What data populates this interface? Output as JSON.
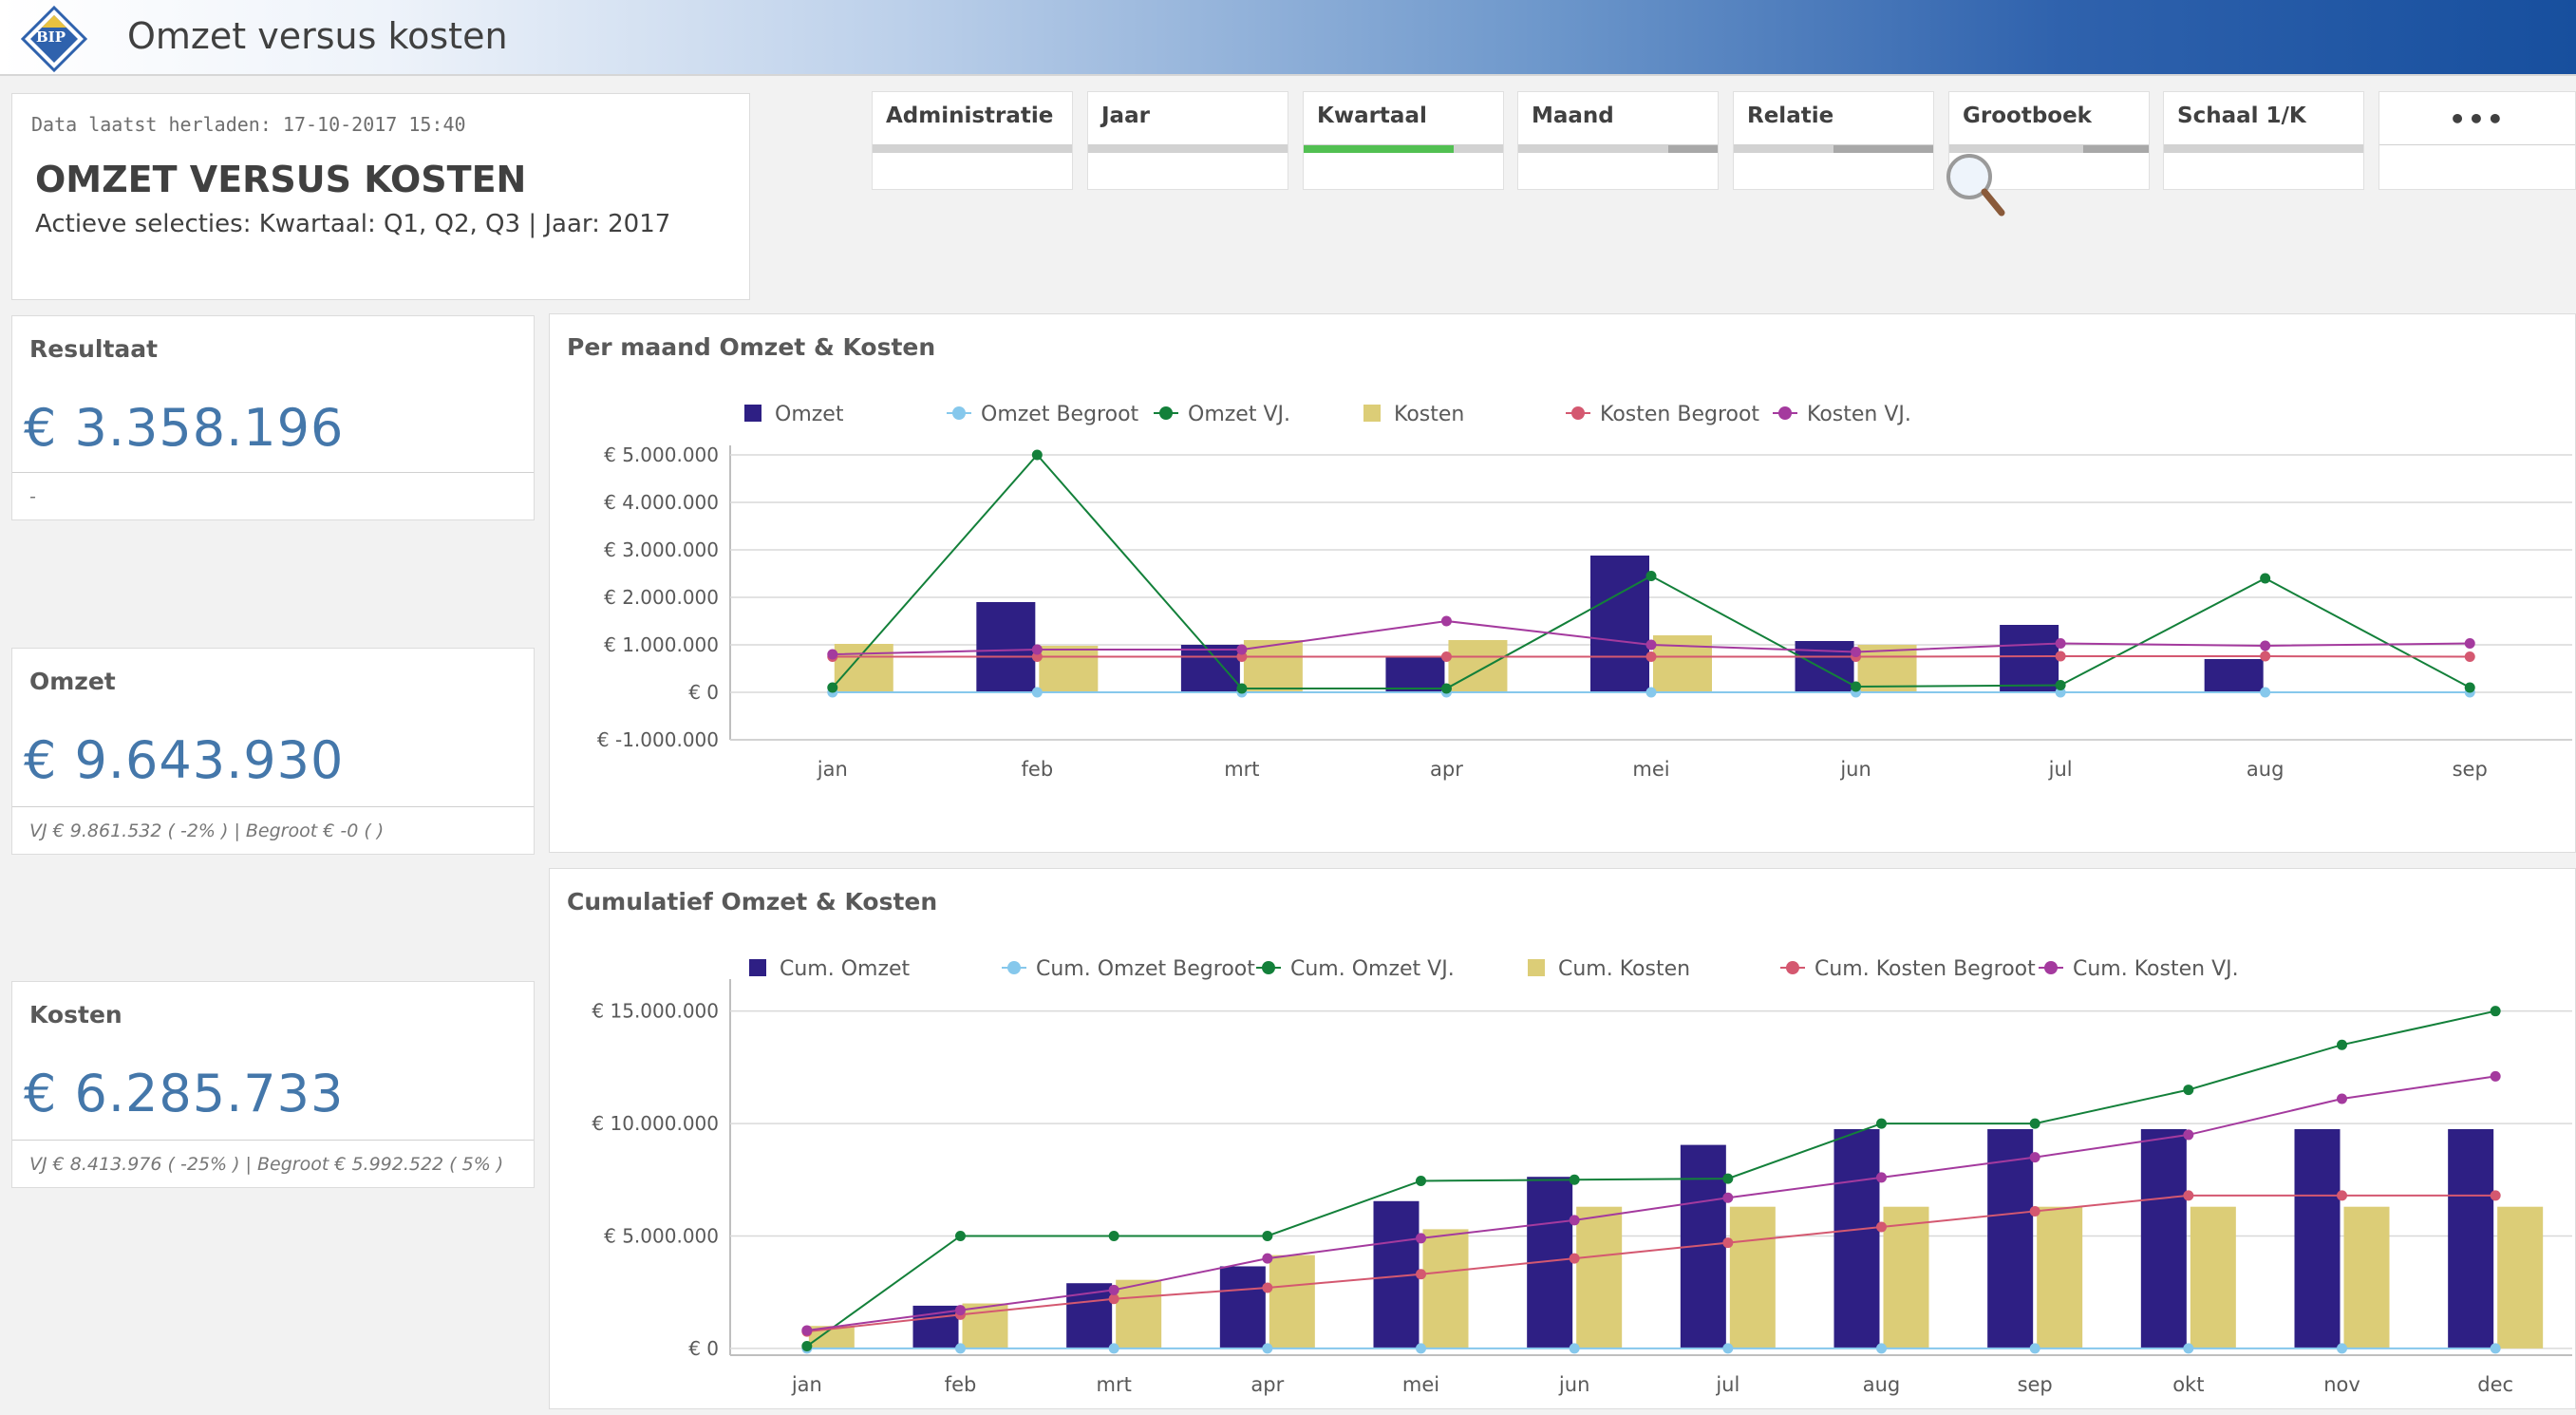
{
  "header": {
    "title": "Omzet versus kosten",
    "logo_text": "BIP"
  },
  "info": {
    "reload": "Data laatst herladen: 17-10-2017 15:40",
    "title": "OMZET VERSUS KOSTEN",
    "selections": "Actieve selecties: Kwartaal: Q1, Q2, Q3 | Jaar: 2017"
  },
  "filters": [
    {
      "label": "Administratie",
      "fill": 0,
      "color": "#a8a8a8"
    },
    {
      "label": "Jaar",
      "fill": 0,
      "color": "#a8a8a8"
    },
    {
      "label": "Kwartaal",
      "fill": 0.75,
      "color": "#52c052"
    },
    {
      "label": "Maand",
      "fill": 0.25,
      "color": "#a8a8a8"
    },
    {
      "label": "Relatie",
      "fill": 0.5,
      "color": "#a8a8a8"
    },
    {
      "label": "Grootboek",
      "fill": 0.33,
      "color": "#a8a8a8"
    },
    {
      "label": "Schaal 1/K",
      "fill": 0,
      "color": "#a8a8a8"
    },
    {
      "label": "•••",
      "fill": 0,
      "color": "#a8a8a8"
    }
  ],
  "kpis": {
    "resultaat": {
      "label": "Resultaat",
      "value": "€ 3.358.196",
      "footer": "-"
    },
    "omzet": {
      "label": "Omzet",
      "value": "€ 9.643.930",
      "footer": "VJ € 9.861.532 ( -2% ) | Begroot € -0 ( )"
    },
    "kosten": {
      "label": "Kosten",
      "value": "€ 6.285.733",
      "footer": "VJ € 8.413.976 ( -25% ) | Begroot € 5.992.522 ( 5% )"
    }
  },
  "colors": {
    "omzet": "#2e1f84",
    "omzet_begroot": "#86c8ec",
    "omzet_vj": "#13803a",
    "kosten": "#dccd77",
    "kosten_begroot": "#d45870",
    "kosten_vj": "#a43a9e"
  },
  "chart_data": [
    {
      "type": "bar",
      "title": "Per maand Omzet & Kosten",
      "categories": [
        "jan",
        "feb",
        "mrt",
        "apr",
        "mei",
        "jun",
        "jul",
        "aug",
        "sep"
      ],
      "ylim": [
        -1000000,
        5000000
      ],
      "yticks": [
        {
          "value": 5000000,
          "label": "€ 5.000.000"
        },
        {
          "value": 4000000,
          "label": "€ 4.000.000"
        },
        {
          "value": 3000000,
          "label": "€ 3.000.000"
        },
        {
          "value": 2000000,
          "label": "€ 2.000.000"
        },
        {
          "value": 1000000,
          "label": "€ 1.000.000"
        },
        {
          "value": 0,
          "label": "€ 0"
        },
        {
          "value": -1000000,
          "label": "€ -1.000.000"
        }
      ],
      "legend_position": "top",
      "series": [
        {
          "name": "Omzet",
          "kind": "bar",
          "color_key": "omzet",
          "values": [
            0,
            1900000,
            1000000,
            750000,
            2880000,
            1080000,
            1420000,
            700000,
            0
          ]
        },
        {
          "name": "Omzet Begroot",
          "kind": "line",
          "color_key": "omzet_begroot",
          "values": [
            0,
            0,
            0,
            0,
            0,
            0,
            0,
            0,
            0
          ]
        },
        {
          "name": "Omzet VJ.",
          "kind": "line",
          "color_key": "omzet_vj",
          "values": [
            100000,
            5000000,
            80000,
            80000,
            2450000,
            120000,
            150000,
            2400000,
            100000
          ]
        },
        {
          "name": "Kosten",
          "kind": "bar",
          "color_key": "kosten",
          "values": [
            1020000,
            980000,
            1100000,
            1100000,
            1200000,
            1000000,
            0,
            0,
            0
          ]
        },
        {
          "name": "Kosten Begroot",
          "kind": "line",
          "color_key": "kosten_begroot",
          "values": [
            750000,
            750000,
            750000,
            750000,
            750000,
            750000,
            760000,
            760000,
            750000
          ]
        },
        {
          "name": "Kosten VJ.",
          "kind": "line",
          "color_key": "kosten_vj",
          "values": [
            800000,
            900000,
            900000,
            1500000,
            1000000,
            850000,
            1030000,
            980000,
            1030000
          ]
        }
      ]
    },
    {
      "type": "bar",
      "title": "Cumulatief Omzet & Kosten",
      "categories": [
        "jan",
        "feb",
        "mrt",
        "apr",
        "mei",
        "jun",
        "jul",
        "aug",
        "sep",
        "okt",
        "nov",
        "dec"
      ],
      "ylim": [
        -300000,
        16000000
      ],
      "yticks": [
        {
          "value": 15000000,
          "label": "€ 15.000.000"
        },
        {
          "value": 10000000,
          "label": "€ 10.000.000"
        },
        {
          "value": 5000000,
          "label": "€ 5.000.000"
        },
        {
          "value": 0,
          "label": "€ 0"
        }
      ],
      "legend_position": "top",
      "series": [
        {
          "name": "Cum. Omzet",
          "kind": "bar",
          "color_key": "omzet",
          "values": [
            0,
            1900000,
            2900000,
            3650000,
            6550000,
            7630000,
            9050000,
            9750000,
            9750000,
            9750000,
            9750000,
            9750000
          ]
        },
        {
          "name": "Cum. Omzet Begroot",
          "kind": "line",
          "color_key": "omzet_begroot",
          "values": [
            0,
            0,
            0,
            0,
            0,
            0,
            0,
            0,
            0,
            0,
            0,
            0
          ]
        },
        {
          "name": "Cum. Omzet VJ.",
          "kind": "line",
          "color_key": "omzet_vj",
          "values": [
            100000,
            5000000,
            5000000,
            5000000,
            7450000,
            7500000,
            7550000,
            10000000,
            10000000,
            11500000,
            13500000,
            15000000
          ]
        },
        {
          "name": "Cum. Kosten",
          "kind": "bar",
          "color_key": "kosten",
          "values": [
            1000000,
            2000000,
            3050000,
            4150000,
            5300000,
            6300000,
            6300000,
            6300000,
            6300000,
            6300000,
            6300000,
            6300000
          ]
        },
        {
          "name": "Cum. Kosten Begroot",
          "kind": "line",
          "color_key": "kosten_begroot",
          "values": [
            750000,
            1500000,
            2200000,
            2700000,
            3300000,
            4000000,
            4700000,
            5400000,
            6100000,
            6800000,
            6800000,
            6800000
          ]
        },
        {
          "name": "Cum. Kosten VJ.",
          "kind": "line",
          "color_key": "kosten_vj",
          "values": [
            800000,
            1700000,
            2600000,
            4000000,
            4900000,
            5700000,
            6700000,
            7600000,
            8500000,
            9500000,
            11100000,
            12100000
          ]
        }
      ]
    }
  ]
}
